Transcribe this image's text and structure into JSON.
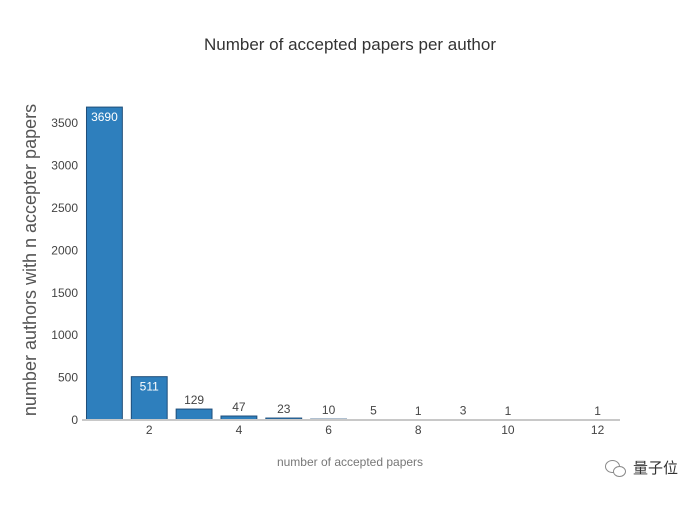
{
  "chart_data": {
    "type": "bar",
    "title": "Number of accepted papers per author",
    "xlabel": "number of accepted papers",
    "ylabel": "number authors with n accepter papers",
    "x": [
      1,
      2,
      3,
      4,
      5,
      6,
      7,
      8,
      9,
      10,
      12
    ],
    "values": [
      3690,
      511,
      129,
      47,
      23,
      10,
      5,
      1,
      3,
      1,
      1
    ],
    "xlim": [
      0.5,
      12.5
    ],
    "ylim": [
      0,
      3750
    ],
    "xticks": [
      2,
      4,
      6,
      8,
      10,
      12
    ],
    "yticks": [
      0,
      500,
      1000,
      1500,
      2000,
      2500,
      3000,
      3500
    ],
    "grid": false,
    "bar_color": "#2e7fbd",
    "bar_edge_color": "#1f4e79"
  },
  "watermark": {
    "text": "量子位",
    "icon": "wechat-icon"
  }
}
